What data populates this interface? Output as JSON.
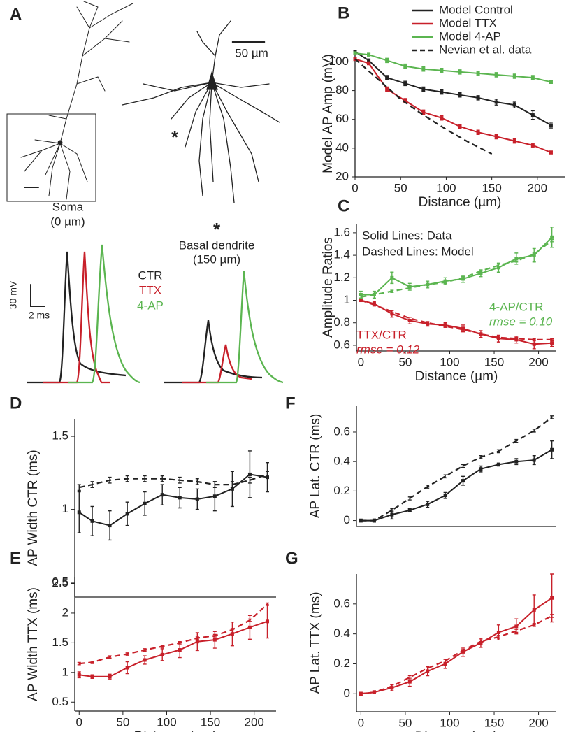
{
  "figure_a": {
    "panel_label": "A",
    "scale": "50 µm",
    "soma": "Soma",
    "soma_dist": "(0 µm)",
    "star": "*",
    "dendrite_star": "*",
    "dendrite": "Basal dendrite",
    "dendrite_dist": "(150 µm)",
    "volt_scale": "30 mV",
    "time_scale": "2 ms",
    "legend": [
      {
        "name": "CTR",
        "color": "#222222"
      },
      {
        "name": "TTX",
        "color": "#c8202a"
      },
      {
        "name": "4-AP",
        "color": "#5bb550"
      }
    ]
  },
  "chart_data": [
    {
      "type": "line",
      "panel_label": "B",
      "x_label": "Distance (µm)",
      "y_label": "Model AP Amp (mV)",
      "xlim": [
        0,
        230
      ],
      "ylim": [
        20,
        108
      ],
      "xticks": [
        0,
        50,
        100,
        150,
        200
      ],
      "yticks": [
        20,
        40,
        60,
        80,
        100
      ],
      "legend": true,
      "legend_position": "upper right",
      "x": [
        0,
        15,
        35,
        55,
        75,
        95,
        115,
        135,
        155,
        175,
        195,
        215
      ],
      "series": [
        {
          "name": "Model Control",
          "color": "#222222",
          "values": [
            107,
            101,
            89,
            85,
            81,
            79,
            77,
            75,
            72,
            70,
            63,
            56
          ],
          "errors": [
            1,
            1,
            1.5,
            1.5,
            1.5,
            1.5,
            1.5,
            1.5,
            2,
            2,
            3,
            2
          ]
        },
        {
          "name": "Model TTX",
          "color": "#c8202a",
          "values": [
            102,
            99,
            81,
            73,
            65,
            61,
            55,
            51,
            48,
            45,
            42,
            37
          ],
          "errors": [
            1,
            1,
            1.5,
            1.5,
            1.5,
            1.5,
            1.5,
            1.5,
            1.5,
            1.5,
            1.5,
            1
          ]
        },
        {
          "name": "Model 4-AP",
          "color": "#5bb550",
          "values": [
            106,
            105,
            101,
            97,
            95,
            94,
            93,
            92,
            91,
            90,
            89,
            86
          ],
          "errors": [
            1,
            1,
            1.5,
            1.5,
            1.5,
            1.5,
            1.5,
            1.5,
            1.5,
            1.5,
            1.5,
            1
          ]
        },
        {
          "name": "Nevian et al. data",
          "color": "#222222",
          "dashed": true,
          "x": [
            0,
            25,
            50,
            75,
            100,
            125,
            150
          ],
          "values": [
            102,
            88,
            74,
            63,
            53,
            44,
            36
          ]
        }
      ]
    },
    {
      "type": "line",
      "panel_label": "C",
      "x_label": "Distance (µm)",
      "y_label": "Amplitude Ratios",
      "xlim": [
        -5,
        220
      ],
      "ylim": [
        0.55,
        1.68
      ],
      "xticks": [
        0,
        50,
        100,
        150,
        200
      ],
      "yticks": [
        0.6,
        0.8,
        {
          "value": 1,
          "label": "1"
        },
        1.2,
        1.4,
        1.6
      ],
      "x": [
        0,
        15,
        35,
        55,
        75,
        95,
        115,
        135,
        155,
        175,
        195,
        215
      ],
      "annotations": [
        {
          "text": "Solid Lines: Data",
          "color": "#222222"
        },
        {
          "text": "Dashed Lines: Model",
          "color": "#222222"
        },
        {
          "text": "4-AP/CTR",
          "color": "#5bb550"
        },
        {
          "text": "rmse = 0.10",
          "color": "#5bb550",
          "italic": true
        },
        {
          "text": "TTX/CTR",
          "color": "#c8202a"
        },
        {
          "text": "rmse = 0.12",
          "color": "#c8202a",
          "italic": true
        }
      ],
      "series": [
        {
          "color": "#5bb550",
          "values": [
            1.05,
            1.05,
            1.2,
            1.12,
            1.14,
            1.17,
            1.19,
            1.24,
            1.29,
            1.37,
            1.4,
            1.56
          ],
          "errors": [
            0.03,
            0.03,
            0.05,
            0.03,
            0.03,
            0.03,
            0.03,
            0.03,
            0.04,
            0.05,
            0.06,
            0.09
          ]
        },
        {
          "color": "#5bb550",
          "dashed": true,
          "values": [
            1.03,
            1.05,
            1.08,
            1.11,
            1.14,
            1.16,
            1.2,
            1.26,
            1.31,
            1.35,
            1.41,
            1.53
          ],
          "errors": [
            0.01,
            0.01,
            0.01,
            0.01,
            0.01,
            0.01,
            0.01,
            0.01,
            0.01,
            0.01,
            0.01,
            0.01
          ]
        },
        {
          "color": "#c8202a",
          "values": [
            1.0,
            0.97,
            0.88,
            0.82,
            0.79,
            0.78,
            0.75,
            0.7,
            0.66,
            0.65,
            0.61,
            0.62
          ],
          "errors": [
            0.01,
            0.02,
            0.03,
            0.03,
            0.02,
            0.02,
            0.03,
            0.03,
            0.03,
            0.03,
            0.04,
            0.03
          ]
        },
        {
          "color": "#c8202a",
          "dashed": true,
          "values": [
            1.0,
            0.96,
            0.9,
            0.84,
            0.8,
            0.77,
            0.74,
            0.7,
            0.67,
            0.66,
            0.65,
            0.65
          ],
          "errors": [
            0.01,
            0.01,
            0.01,
            0.01,
            0.01,
            0.01,
            0.01,
            0.01,
            0.01,
            0.01,
            0.01,
            0.01
          ]
        }
      ]
    },
    {
      "type": "line",
      "panel_label": "D",
      "y_label": "AP Width CTR (ms)",
      "xlim": [
        -5,
        225
      ],
      "ylim": [
        0.4,
        1.62
      ],
      "yticks": [
        0.5,
        {
          "value": 1,
          "label": "1"
        },
        1.5
      ],
      "x": [
        0,
        15,
        35,
        55,
        75,
        95,
        115,
        135,
        155,
        175,
        195,
        215
      ],
      "series": [
        {
          "color": "#222222",
          "values": [
            0.98,
            0.92,
            0.89,
            0.97,
            1.04,
            1.1,
            1.08,
            1.07,
            1.09,
            1.14,
            1.24,
            1.22
          ],
          "errors": [
            0.14,
            0.1,
            0.1,
            0.08,
            0.08,
            0.07,
            0.07,
            0.07,
            0.1,
            0.12,
            0.16,
            0.1
          ]
        },
        {
          "color": "#222222",
          "dashed": true,
          "values": [
            1.15,
            1.17,
            1.2,
            1.21,
            1.21,
            1.21,
            1.2,
            1.19,
            1.17,
            1.17,
            1.2,
            1.24
          ],
          "errors": [
            0.02,
            0.02,
            0.02,
            0.02,
            0.02,
            0.02,
            0.02,
            0.02,
            0.02,
            0.02,
            0.02,
            0.02
          ]
        }
      ]
    },
    {
      "type": "line",
      "panel_label": "E",
      "x_label": "Distance (µm)",
      "y_label": "AP Width TTX (ms)",
      "xlim": [
        -5,
        225
      ],
      "ylim": [
        0.35,
        2.6
      ],
      "xticks": [
        0,
        50,
        100,
        150,
        200
      ],
      "yticks": [
        0.5,
        {
          "value": 1,
          "label": "1"
        },
        1.5,
        2,
        2.5
      ],
      "x": [
        0,
        15,
        35,
        55,
        75,
        95,
        115,
        135,
        155,
        175,
        195,
        215
      ],
      "series": [
        {
          "color": "#c8202a",
          "values": [
            0.96,
            0.93,
            0.93,
            1.08,
            1.21,
            1.3,
            1.38,
            1.52,
            1.55,
            1.65,
            1.76,
            1.86
          ],
          "errors": [
            0.05,
            0.03,
            0.04,
            0.1,
            0.07,
            0.1,
            0.13,
            0.15,
            0.14,
            0.2,
            0.2,
            0.28
          ]
        },
        {
          "color": "#c8202a",
          "dashed": true,
          "values": [
            1.15,
            1.17,
            1.26,
            1.31,
            1.38,
            1.44,
            1.5,
            1.58,
            1.62,
            1.72,
            1.88,
            2.15
          ],
          "errors": [
            0.02,
            0.02,
            0.02,
            0.02,
            0.02,
            0.02,
            0.02,
            0.02,
            0.02,
            0.02,
            0.02,
            0.02
          ]
        }
      ]
    },
    {
      "type": "line",
      "panel_label": "F",
      "y_label": "AP Lat. CTR (ms)",
      "xlim": [
        -5,
        220
      ],
      "ylim": [
        -0.04,
        0.78
      ],
      "yticks": [
        0,
        0.2,
        0.4,
        0.6
      ],
      "x": [
        0,
        15,
        35,
        55,
        75,
        95,
        115,
        135,
        155,
        175,
        195,
        215
      ],
      "series": [
        {
          "color": "#222222",
          "values": [
            0,
            0,
            0.04,
            0.07,
            0.11,
            0.17,
            0.27,
            0.35,
            0.38,
            0.4,
            0.41,
            0.48
          ],
          "errors": [
            0,
            0.01,
            0.03,
            0.01,
            0.02,
            0.02,
            0.03,
            0.02,
            0.01,
            0.02,
            0.03,
            0.06
          ]
        },
        {
          "color": "#222222",
          "dashed": true,
          "values": [
            0,
            0,
            0.07,
            0.15,
            0.23,
            0.3,
            0.37,
            0.43,
            0.47,
            0.54,
            0.61,
            0.7
          ],
          "errors": [
            0.01,
            0.01,
            0.01,
            0.01,
            0.01,
            0.01,
            0.01,
            0.01,
            0.01,
            0.01,
            0.01,
            0.01
          ]
        }
      ]
    },
    {
      "type": "line",
      "panel_label": "G",
      "x_label": "Distance (µm)",
      "y_label": "AP Lat. TTX (ms)",
      "xlim": [
        -5,
        220
      ],
      "ylim": [
        -0.12,
        0.8
      ],
      "xticks": [
        0,
        50,
        100,
        150,
        200
      ],
      "yticks": [
        0,
        0.2,
        0.4,
        0.6
      ],
      "x": [
        0,
        15,
        35,
        55,
        75,
        95,
        115,
        135,
        155,
        175,
        195,
        215
      ],
      "series": [
        {
          "color": "#c8202a",
          "values": [
            0,
            0.01,
            0.04,
            0.08,
            0.15,
            0.2,
            0.28,
            0.34,
            0.41,
            0.45,
            0.56,
            0.64
          ],
          "errors": [
            0,
            0.01,
            0.02,
            0.03,
            0.03,
            0.03,
            0.03,
            0.03,
            0.05,
            0.05,
            0.1,
            0.16
          ]
        },
        {
          "color": "#c8202a",
          "dashed": true,
          "values": [
            0,
            0.01,
            0.05,
            0.11,
            0.17,
            0.22,
            0.29,
            0.35,
            0.38,
            0.42,
            0.46,
            0.52
          ],
          "errors": [
            0.01,
            0.01,
            0.01,
            0.01,
            0.01,
            0.01,
            0.01,
            0.01,
            0.01,
            0.01,
            0.01,
            0.01
          ]
        }
      ]
    }
  ]
}
